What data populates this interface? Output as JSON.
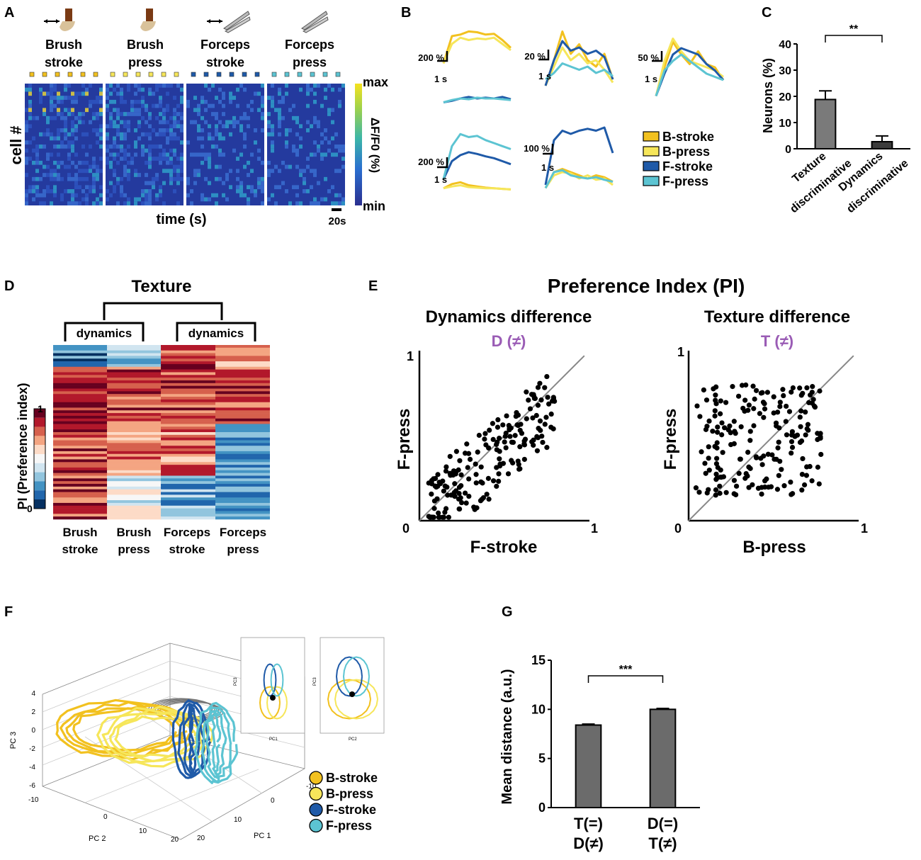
{
  "panels": {
    "A": "A",
    "B": "B",
    "C": "C",
    "D": "D",
    "E": "E",
    "F": "F",
    "G": "G"
  },
  "colors": {
    "bstroke": "#f2c11f",
    "bpress": "#f6e65a",
    "fstroke": "#1f5aa8",
    "fpress": "#5cc4d2",
    "purple": "#9a5cb5",
    "bar": "#6b6b6b",
    "gray": "#777777"
  },
  "legend": [
    "B-stroke",
    "B-press",
    "F-stroke",
    "F-press"
  ],
  "panelA": {
    "col1": [
      "Brush",
      "stroke"
    ],
    "col2": [
      "Brush",
      "press"
    ],
    "col3": [
      "Forceps",
      "stroke"
    ],
    "col4": [
      "Forceps",
      "press"
    ],
    "ylabel": "cell #",
    "xlabel": "time (s)",
    "scalebar": "20s",
    "cbar_max": "max",
    "cbar_min": "min",
    "cbar_label": "ΔF/F0 (%)"
  },
  "panelB": {
    "scales": [
      "200 %",
      "20 %",
      "50 %",
      "200 %",
      "100 %"
    ],
    "time": "1 s"
  },
  "chart_data": [
    {
      "type": "bar",
      "panel": "C",
      "categories": [
        "Texture discriminative",
        "Dynamics discriminative"
      ],
      "values": [
        18.8,
        2.7
      ],
      "errors": [
        3.3,
        2.2
      ],
      "ylabel": "Neurons (%)",
      "ylim": [
        0,
        40
      ],
      "yticks": [
        "0",
        "10",
        "20",
        "30",
        "40"
      ],
      "significance": "**"
    },
    {
      "type": "heatmap",
      "panel": "D",
      "title": "Texture",
      "group_labels": [
        "dynamics",
        "dynamics"
      ],
      "columns": [
        "Brush stroke",
        "Brush press",
        "Forceps stroke",
        "Forceps press"
      ],
      "ylabel": "PI (Preference index)",
      "cbar_ticks": [
        "1",
        "0"
      ]
    },
    {
      "type": "scatter",
      "panel": "E-left",
      "suptitle": "Preference Index (PI)",
      "title": "Dynamics difference",
      "subtitle": "D (≠)",
      "xlabel": "F-stroke",
      "ylabel": "F-press",
      "xlim": [
        0,
        1
      ],
      "ylim": [
        0,
        1
      ],
      "ticks": [
        "0",
        "1",
        "1"
      ]
    },
    {
      "type": "scatter",
      "panel": "E-right",
      "title": "Texture difference",
      "subtitle": "T (≠)",
      "xlabel": "B-press",
      "ylabel": "F-press",
      "xlim": [
        0,
        1
      ],
      "ylim": [
        0,
        1
      ],
      "ticks": [
        "0",
        "1",
        "1"
      ]
    },
    {
      "type": "line",
      "panel": "F",
      "xlabel": "PC 1",
      "ylabel": "PC 2",
      "zlabel": "PC 3",
      "zticks": [
        "4",
        "2",
        "0",
        "-2",
        "-4",
        "-6"
      ],
      "pc2ticks": [
        "-10",
        "0",
        "10",
        "20"
      ],
      "pc1ticks": [
        "-10",
        "0",
        "10",
        "20"
      ],
      "inset1": {
        "xlabel": "PC1",
        "ylabel": "PC3"
      },
      "inset2": {
        "xlabel": "PC2",
        "ylabel": "PC3"
      }
    },
    {
      "type": "bar",
      "panel": "G",
      "categories": [
        "T(=) D(≠)",
        "D(=) T(≠)"
      ],
      "values": [
        8.4,
        10.0
      ],
      "errors": [
        0.1,
        0.1
      ],
      "ylabel": "Mean distance (a.u.)",
      "ylim": [
        0,
        15
      ],
      "yticks": [
        "0",
        "5",
        "10",
        "15"
      ],
      "significance": "***",
      "xticklines": [
        [
          "T(=)",
          "D(≠)"
        ],
        [
          "D(=)",
          "T(≠)"
        ]
      ]
    }
  ]
}
